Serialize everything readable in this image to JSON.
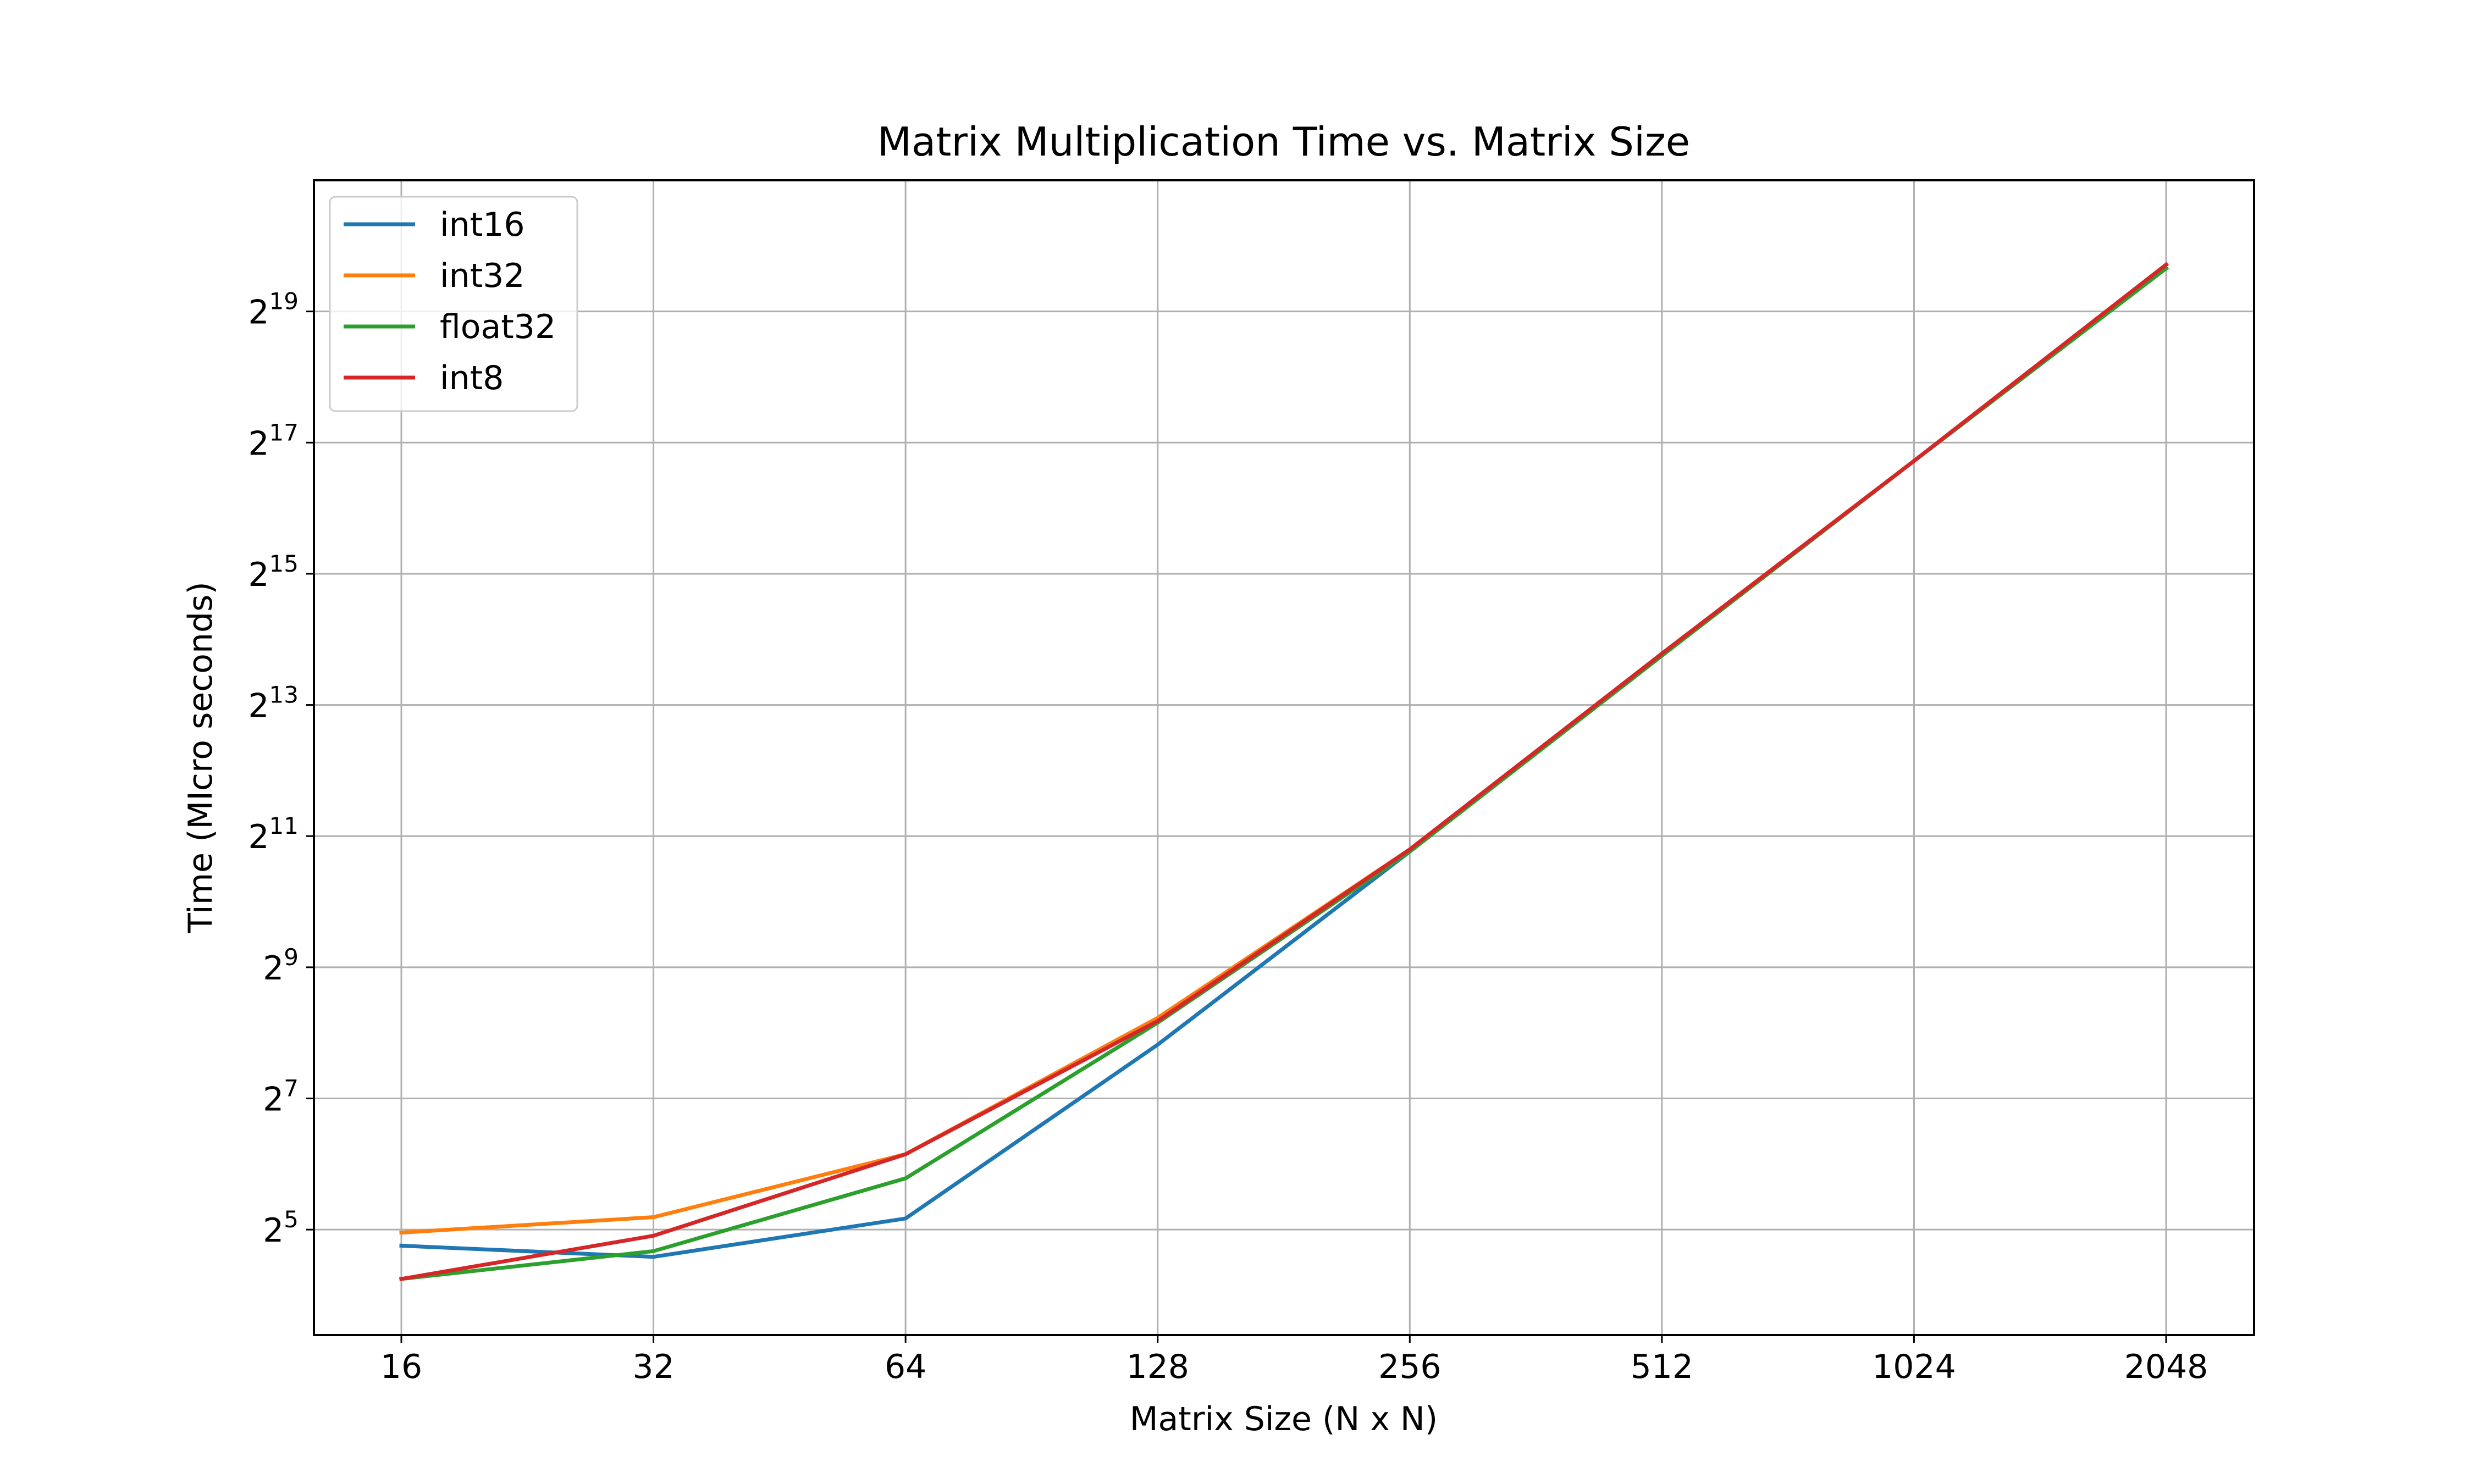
{
  "chart_data": {
    "type": "line",
    "title": "Matrix Multiplication Time vs. Matrix Size",
    "xlabel": "Matrix Size (N x N)",
    "ylabel": "Time (MIcro seconds)",
    "x_scale": "log2",
    "y_scale": "log2",
    "x": [
      16,
      32,
      64,
      128,
      256,
      512,
      1024,
      2048
    ],
    "x_tick_labels": [
      "16",
      "32",
      "64",
      "128",
      "256",
      "512",
      "1024",
      "2048"
    ],
    "y_ticks": [
      {
        "base": "2",
        "exp": "5",
        "value": 32
      },
      {
        "base": "2",
        "exp": "7",
        "value": 128
      },
      {
        "base": "2",
        "exp": "9",
        "value": 512
      },
      {
        "base": "2",
        "exp": "11",
        "value": 2048
      },
      {
        "base": "2",
        "exp": "13",
        "value": 8192
      },
      {
        "base": "2",
        "exp": "15",
        "value": 32768
      },
      {
        "base": "2",
        "exp": "17",
        "value": 131072
      },
      {
        "base": "2",
        "exp": "19",
        "value": 524288
      }
    ],
    "ylim": [
      10.5,
      2097152
    ],
    "grid": true,
    "legend_position": "top-left",
    "series": [
      {
        "name": "int16",
        "color": "#1f77b4",
        "values": [
          27,
          24,
          36,
          226,
          1740,
          13800,
          108000,
          827000
        ]
      },
      {
        "name": "int32",
        "color": "#ff7f0e",
        "values": [
          31,
          36.5,
          71,
          300,
          1780,
          14100,
          108000,
          860000
        ]
      },
      {
        "name": "float32",
        "color": "#2ca02c",
        "values": [
          19,
          25.5,
          55,
          285,
          1740,
          13800,
          108000,
          827000
        ]
      },
      {
        "name": "int8",
        "color": "#d62728",
        "values": [
          19,
          30,
          71,
          290,
          1780,
          14100,
          108000,
          860000
        ]
      }
    ]
  }
}
